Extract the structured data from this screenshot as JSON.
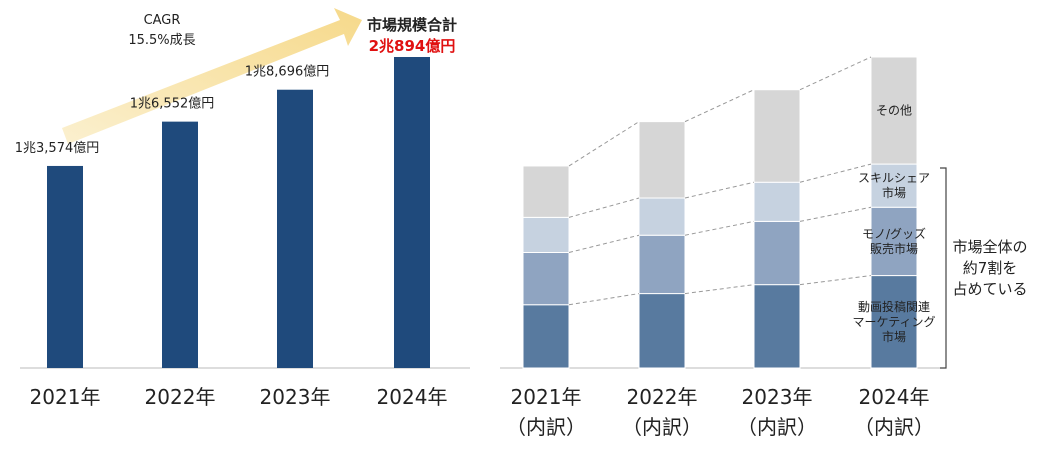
{
  "chart_data": [
    {
      "type": "bar",
      "categories": [
        "2021年",
        "2022年",
        "2023年",
        "2024年"
      ],
      "values": [
        13574,
        16552,
        18696,
        20894
      ],
      "value_labels": [
        "1兆3,574億円",
        "1兆6,552億円",
        "1兆8,696億円",
        "2兆894億円"
      ],
      "color": "#1f4a7c",
      "annotations": [
        "CAGR",
        "15.5%成長",
        "市場規模合計"
      ]
    },
    {
      "type": "stacked_bar",
      "categories": [
        "2021年\n（内訳）",
        "2022年\n（内訳）",
        "2023年\n（内訳）",
        "2024年\n（内訳）"
      ],
      "series": [
        {
          "name": "動画投稿関連\nマーケティング\n市場",
          "color": "#587a9f",
          "values": [
            4250,
            5000,
            5600,
            6210
          ]
        },
        {
          "name": "モノ/グッズ\n販売市場",
          "color": "#8fa4c1",
          "values": [
            3510,
            3920,
            4250,
            4590
          ]
        },
        {
          "name": "スキルシェア\n市場",
          "color": "#c6d2e0",
          "values": [
            2360,
            2500,
            2630,
            2900
          ]
        },
        {
          "name": "その他",
          "color": "#d6d6d6",
          "values": [
            3454,
            5132,
            6216,
            7194
          ]
        }
      ],
      "annotations": [
        "市場全体の\n約7割を\n占めている"
      ]
    }
  ]
}
